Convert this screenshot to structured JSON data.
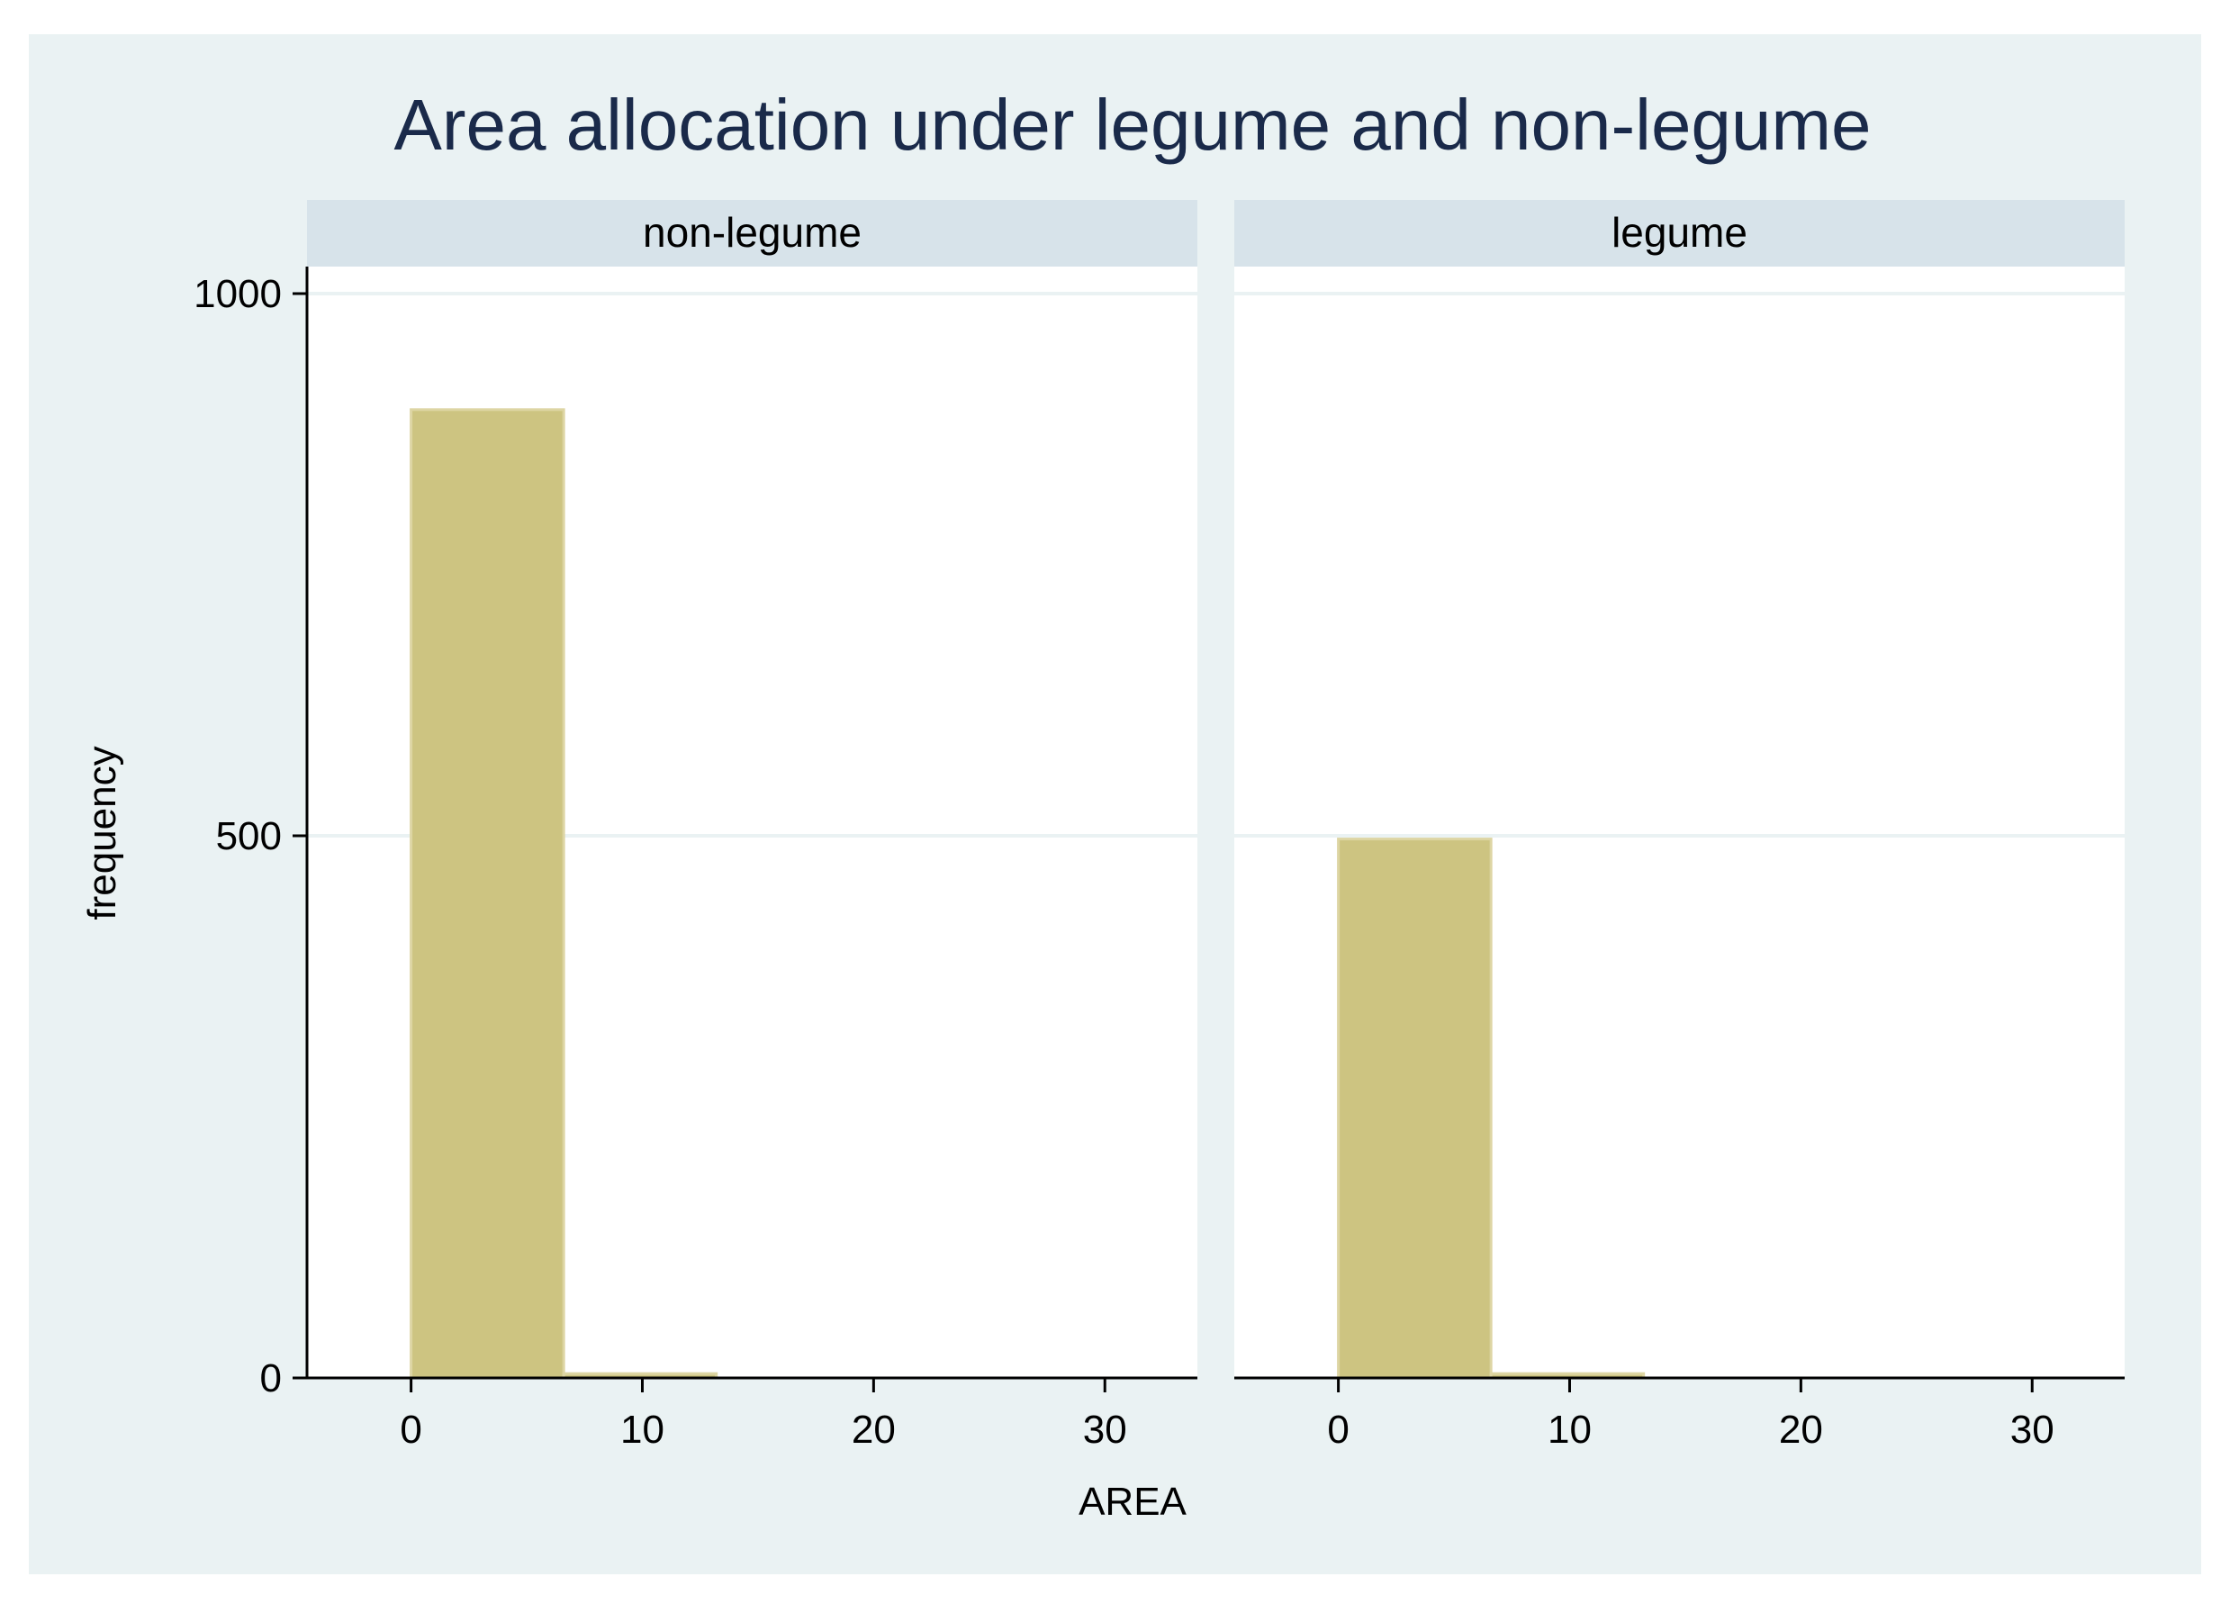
{
  "chart_data": {
    "type": "bar",
    "title": "Area allocation under legume and non-legume",
    "xlabel": "AREA",
    "ylabel": "frequency",
    "xlim": [
      -4.5,
      34
    ],
    "ylim": [
      0,
      1000
    ],
    "xticks": [
      0,
      10,
      20,
      30
    ],
    "yticks": [
      0,
      500,
      1000
    ],
    "grid": true,
    "bin_width": 6.6,
    "colors": {
      "outer_background": "#eaf2f3",
      "plot_background": "#ffffff",
      "strip": "#d7e3ea",
      "bar_fill": "#cdc481",
      "bar_edge": "#ddd5a3",
      "grid": "#eaf2f3",
      "axis": "#000000",
      "title": "#1a2a4a"
    },
    "panels": [
      {
        "name": "non-legume",
        "bins": [
          {
            "x0": 0,
            "x1": 6.6,
            "count": 893
          },
          {
            "x0": 6.6,
            "x1": 13.2,
            "count": 4
          }
        ]
      },
      {
        "name": "legume",
        "bins": [
          {
            "x0": 0,
            "x1": 6.6,
            "count": 497
          },
          {
            "x0": 6.6,
            "x1": 13.2,
            "count": 4
          }
        ]
      }
    ]
  }
}
